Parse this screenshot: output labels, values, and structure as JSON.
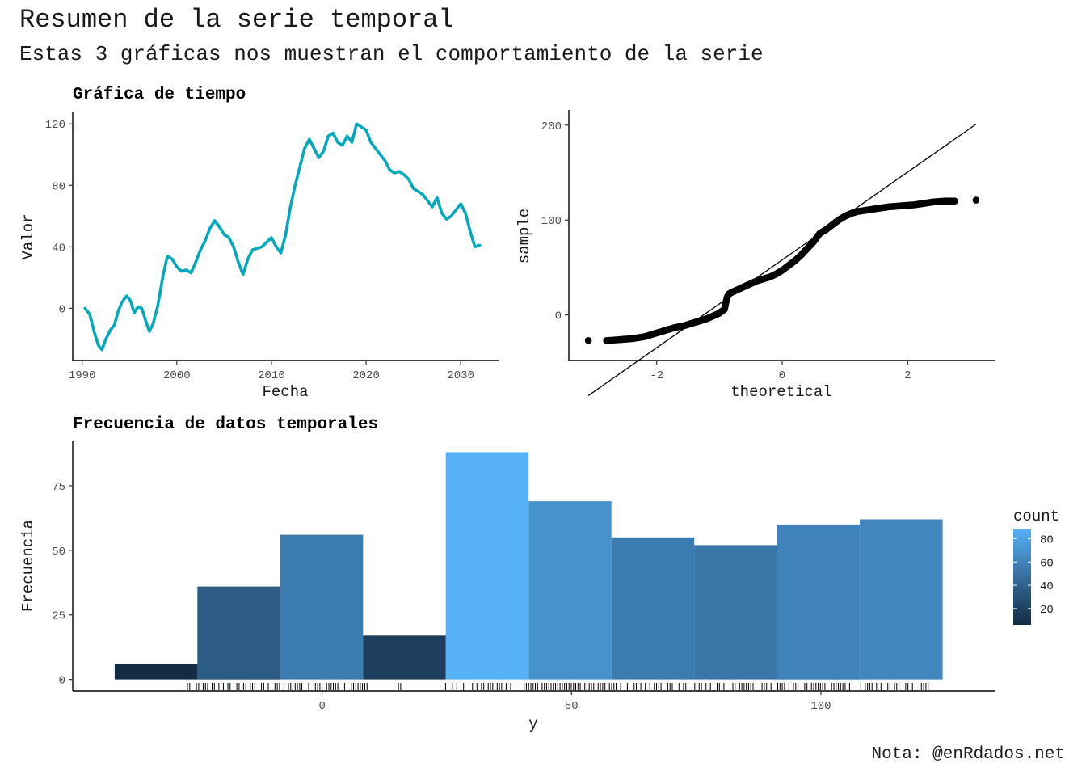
{
  "header": {
    "title": "Resumen de la serie temporal",
    "subtitle": "Estas 3 gráficas nos muestran el comportamiento de la serie",
    "caption": "Nota: @enRdados.net"
  },
  "colors": {
    "line": "#00A9BD",
    "qq_points": "#000000",
    "gradient_low": "#132B43",
    "gradient_high": "#56B1F7"
  },
  "chart_data": [
    {
      "type": "line",
      "title": "Gráfica de tiempo",
      "xlabel": "Fecha",
      "ylabel": "Valor",
      "xlim": [
        1989,
        2034
      ],
      "ylim": [
        -34,
        128
      ],
      "xticks": [
        1990,
        2000,
        2010,
        2020,
        2030
      ],
      "yticks": [
        0,
        40,
        80,
        120
      ],
      "series": [
        {
          "x": [
            1990.3,
            1990.8,
            1991.3,
            1991.7,
            1992.1,
            1992.5,
            1993.0,
            1993.4,
            1993.8,
            1994.2,
            1994.7,
            1995.1,
            1995.5,
            1995.9,
            1996.3,
            1996.7,
            1997.1,
            1997.5,
            1998.0,
            1998.5,
            1999.0,
            1999.5,
            2000.0,
            2000.5,
            2001.0,
            2001.5,
            2002.0,
            2002.5,
            2003.0,
            2003.5,
            2004.0,
            2004.5,
            2005.0,
            2005.5,
            2006.0,
            2006.5,
            2007.0,
            2007.5,
            2008.0,
            2008.5,
            2009.0,
            2009.5,
            2010.0,
            2010.5,
            2011.0,
            2011.5,
            2012.0,
            2012.5,
            2013.0,
            2013.5,
            2014.0,
            2014.5,
            2015.0,
            2015.5,
            2016.0,
            2016.5,
            2017.0,
            2017.5,
            2018.0,
            2018.5,
            2019.0,
            2019.5,
            2020.0,
            2020.5,
            2021.0,
            2021.5,
            2022.0,
            2022.5,
            2023.0,
            2023.5,
            2024.0,
            2024.5,
            2025.0,
            2025.5,
            2026.0,
            2026.5,
            2027.0,
            2027.5,
            2028.0,
            2028.5,
            2029.0,
            2029.5,
            2030.0,
            2030.5,
            2031.0,
            2031.5,
            2032.0
          ],
          "y": [
            0,
            -4,
            -16,
            -24,
            -27,
            -20,
            -14,
            -11,
            -2,
            4,
            8,
            5,
            -3,
            1,
            0,
            -8,
            -15,
            -10,
            2,
            20,
            34,
            32,
            27,
            24,
            25,
            23,
            30,
            38,
            44,
            52,
            57,
            53,
            48,
            46,
            40,
            30,
            22,
            32,
            38,
            39,
            40,
            43,
            46,
            40,
            36,
            48,
            66,
            80,
            92,
            104,
            110,
            104,
            98,
            102,
            112,
            114,
            108,
            106,
            112,
            108,
            120,
            118,
            116,
            108,
            104,
            100,
            96,
            90,
            88,
            89,
            87,
            84,
            78,
            76,
            74,
            70,
            66,
            72,
            62,
            58,
            60,
            64,
            68,
            62,
            50,
            40,
            41
          ]
        }
      ]
    },
    {
      "type": "scatter",
      "subtype": "qq",
      "xlabel": "theoretical",
      "ylabel": "sample",
      "xlim": [
        -3.4,
        3.4
      ],
      "ylim": [
        -48,
        216
      ],
      "xticks": [
        -2,
        0,
        2
      ],
      "yticks": [
        0,
        100,
        200
      ],
      "reference_line": {
        "x": [
          -3.09,
          3.09
        ],
        "y": [
          -85,
          201
        ]
      },
      "points": {
        "x": [
          -3.09,
          -2.8,
          -2.6,
          -2.5,
          -2.4,
          -2.3,
          -2.2,
          -2.1,
          -2.0,
          -1.9,
          -1.8,
          -1.7,
          -1.6,
          -1.5,
          -1.4,
          -1.3,
          -1.2,
          -1.1,
          -1.0,
          -0.92,
          -0.88,
          -0.85,
          -0.8,
          -0.7,
          -0.6,
          -0.5,
          -0.4,
          -0.3,
          -0.2,
          -0.1,
          0.0,
          0.1,
          0.2,
          0.3,
          0.4,
          0.5,
          0.6,
          0.7,
          0.8,
          0.9,
          1.0,
          1.1,
          1.2,
          1.3,
          1.4,
          1.5,
          1.6,
          1.7,
          1.8,
          1.9,
          2.0,
          2.1,
          2.2,
          2.3,
          2.4,
          2.5,
          2.6,
          2.75,
          3.09
        ],
        "y": [
          -27,
          -27,
          -26,
          -25.5,
          -25,
          -24,
          -23,
          -21,
          -19,
          -17,
          -15,
          -13,
          -12,
          -10,
          -8,
          -6,
          -4,
          -1,
          2,
          6,
          18,
          22,
          24,
          27,
          30,
          33,
          36,
          38,
          40,
          43,
          47,
          52,
          57,
          63,
          70,
          77,
          86,
          90,
          95,
          100,
          104,
          107,
          109,
          110,
          111,
          112,
          113,
          114,
          114.5,
          115,
          115.5,
          116,
          117,
          118,
          119,
          119.5,
          120,
          120,
          121
        ]
      }
    },
    {
      "type": "bar",
      "subtype": "histogram",
      "title": "Frecuencia de datos temporales",
      "xlabel": "y",
      "ylabel": "Frecuencia",
      "xlim": [
        -50,
        135
      ],
      "ylim": [
        -4.5,
        92.5
      ],
      "xticks": [
        0,
        50,
        100
      ],
      "yticks": [
        0,
        25,
        50,
        75
      ],
      "bin_edges": [
        -41.6,
        -25.0,
        -8.4,
        8.2,
        24.8,
        41.4,
        58.0,
        74.6,
        91.2,
        107.8,
        124.4
      ],
      "values": [
        6,
        36,
        56,
        17,
        88,
        69,
        55,
        52,
        60,
        62
      ],
      "rug_range": [
        -27,
        122
      ],
      "legend": {
        "title": "count",
        "ticks": [
          20,
          40,
          60,
          80
        ],
        "range": [
          6,
          88
        ],
        "position": "right"
      }
    }
  ]
}
